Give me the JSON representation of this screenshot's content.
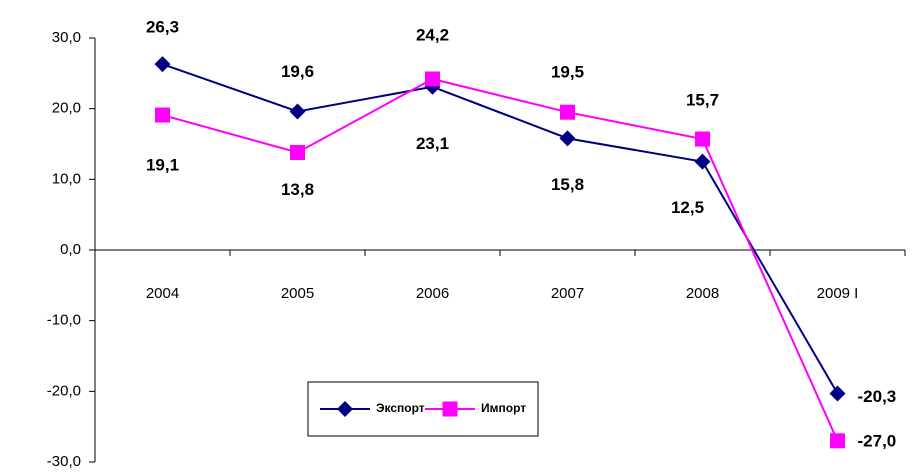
{
  "chart_data": {
    "type": "line",
    "categories": [
      "2004",
      "2005",
      "2006",
      "2007",
      "2008",
      "2009 I"
    ],
    "series": [
      {
        "name": "Экспорт",
        "color": "#000080",
        "values": [
          26.3,
          19.6,
          23.1,
          15.8,
          12.5,
          -20.3
        ],
        "value_labels": [
          "26,3",
          "19,6",
          "23,1",
          "15,8",
          "12,5",
          "-20,3"
        ]
      },
      {
        "name": "Импорт",
        "color": "#ff00ff",
        "values": [
          19.1,
          13.8,
          24.2,
          19.5,
          15.7,
          -27.0
        ],
        "value_labels": [
          "19,1",
          "13,8",
          "24,2",
          "19,5",
          "15,7",
          "-27,0"
        ]
      }
    ],
    "ylim": [
      -30,
      30
    ],
    "yticks": [
      {
        "value": 30,
        "label": "30,0"
      },
      {
        "value": 20,
        "label": "20,0"
      },
      {
        "value": 10,
        "label": "10,0"
      },
      {
        "value": 0,
        "label": "0,0"
      },
      {
        "value": -10,
        "label": "-10,0"
      },
      {
        "value": -20,
        "label": "-20,0"
      },
      {
        "value": -30,
        "label": "-30,0"
      }
    ]
  }
}
